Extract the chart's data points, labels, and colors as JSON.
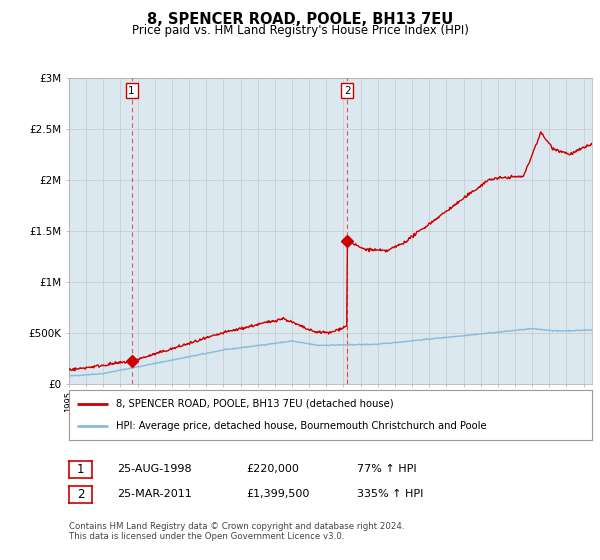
{
  "title": "8, SPENCER ROAD, POOLE, BH13 7EU",
  "subtitle": "Price paid vs. HM Land Registry's House Price Index (HPI)",
  "background_color": "#ffffff",
  "plot_bg_color": "#dce8f0",
  "grid_color": "#c8c8c8",
  "hpi_line_color": "#88bbdd",
  "price_line_color": "#cc0000",
  "sale1_year": 1998.65,
  "sale1_price": 220000,
  "sale2_year": 2011.23,
  "sale2_price": 1399500,
  "legend_label1": "8, SPENCER ROAD, POOLE, BH13 7EU (detached house)",
  "legend_label2": "HPI: Average price, detached house, Bournemouth Christchurch and Poole",
  "table_row1": [
    "1",
    "25-AUG-1998",
    "£220,000",
    "77% ↑ HPI"
  ],
  "table_row2": [
    "2",
    "25-MAR-2011",
    "£1,399,500",
    "335% ↑ HPI"
  ],
  "footnote1": "Contains HM Land Registry data © Crown copyright and database right 2024.",
  "footnote2": "This data is licensed under the Open Government Licence v3.0.",
  "ylim_max": 3000000,
  "xlim_start": 1995.0,
  "xlim_end": 2025.5
}
